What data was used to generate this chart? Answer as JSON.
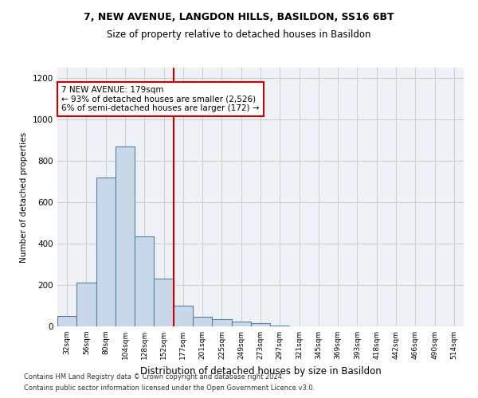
{
  "title1": "7, NEW AVENUE, LANGDON HILLS, BASILDON, SS16 6BT",
  "title2": "Size of property relative to detached houses in Basildon",
  "xlabel": "Distribution of detached houses by size in Basildon",
  "ylabel": "Number of detached properties",
  "categories": [
    "32sqm",
    "56sqm",
    "80sqm",
    "104sqm",
    "128sqm",
    "152sqm",
    "177sqm",
    "201sqm",
    "225sqm",
    "249sqm",
    "273sqm",
    "297sqm",
    "321sqm",
    "345sqm",
    "369sqm",
    "393sqm",
    "418sqm",
    "442sqm",
    "466sqm",
    "490sqm",
    "514sqm"
  ],
  "values": [
    50,
    210,
    720,
    870,
    435,
    230,
    100,
    45,
    35,
    25,
    15,
    5,
    0,
    0,
    0,
    0,
    0,
    0,
    0,
    0,
    0
  ],
  "bar_color": "#c8d8e8",
  "bar_edge_color": "#5580a0",
  "vline_color": "#cc0000",
  "annotation_text": "7 NEW AVENUE: 179sqm\n← 93% of detached houses are smaller (2,526)\n6% of semi-detached houses are larger (172) →",
  "annotation_box_color": "#cc0000",
  "ylim": [
    0,
    1250
  ],
  "yticks": [
    0,
    200,
    400,
    600,
    800,
    1000,
    1200
  ],
  "grid_color": "#cccccc",
  "bg_color": "#eef2f7",
  "footer1": "Contains HM Land Registry data © Crown copyright and database right 2024.",
  "footer2": "Contains public sector information licensed under the Open Government Licence v3.0."
}
